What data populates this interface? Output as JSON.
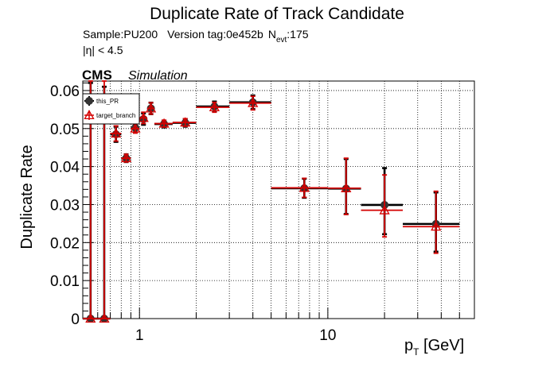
{
  "chart_data": {
    "type": "scatter",
    "title": "Duplicate Rate of Track Candidate",
    "info": {
      "sample": "Sample:PU200",
      "version": "Version tag:0e452b",
      "nevt_prefix": "N",
      "nevt_sub": "evt",
      "nevt_value": ":175",
      "eta_cut": "|η| < 4.5"
    },
    "cms_label": "CMS",
    "simulation_label": "Simulation",
    "ylabel": "Duplicate Rate",
    "xlabel": {
      "main": "p",
      "sub": "T",
      "unit": " [GeV]"
    },
    "xscale": "log",
    "xlim": [
      0.5,
      60
    ],
    "ylim": [
      0,
      0.0625
    ],
    "grid": true,
    "legend_position": "top-left",
    "y_ticks": [
      "0",
      "0.01",
      "0.02",
      "0.03",
      "0.04",
      "0.05",
      "0.06"
    ],
    "x_ticks": [
      "1",
      "10"
    ],
    "series": [
      {
        "name": "this_PR",
        "color": "#000000",
        "marker": "filled-circle",
        "points": [
          {
            "x": 0.55,
            "xlo": 0.5,
            "xhi": 0.6,
            "y": 0.0,
            "ylo": 0.0,
            "yhi": 0.062
          },
          {
            "x": 0.65,
            "xlo": 0.6,
            "xhi": 0.7,
            "y": 0.0,
            "ylo": 0.0,
            "yhi": 0.061
          },
          {
            "x": 0.75,
            "xlo": 0.7,
            "xhi": 0.8,
            "y": 0.0485,
            "ylo": 0.0465,
            "yhi": 0.0505
          },
          {
            "x": 0.85,
            "xlo": 0.8,
            "xhi": 0.9,
            "y": 0.0422,
            "ylo": 0.0412,
            "yhi": 0.0432
          },
          {
            "x": 0.95,
            "xlo": 0.9,
            "xhi": 1.0,
            "y": 0.0502,
            "ylo": 0.049,
            "yhi": 0.0514
          },
          {
            "x": 1.05,
            "xlo": 1.0,
            "xhi": 1.1,
            "y": 0.0525,
            "ylo": 0.051,
            "yhi": 0.054
          },
          {
            "x": 1.15,
            "xlo": 1.1,
            "xhi": 1.2,
            "y": 0.0553,
            "ylo": 0.0538,
            "yhi": 0.0568
          },
          {
            "x": 1.35,
            "xlo": 1.2,
            "xhi": 1.5,
            "y": 0.0512,
            "ylo": 0.0503,
            "yhi": 0.0521
          },
          {
            "x": 1.75,
            "xlo": 1.5,
            "xhi": 2.0,
            "y": 0.0515,
            "ylo": 0.0505,
            "yhi": 0.0525
          },
          {
            "x": 2.5,
            "xlo": 2.0,
            "xhi": 3.0,
            "y": 0.0558,
            "ylo": 0.0545,
            "yhi": 0.0571
          },
          {
            "x": 4.0,
            "xlo": 3.0,
            "xhi": 5.0,
            "y": 0.0569,
            "ylo": 0.0551,
            "yhi": 0.0587
          },
          {
            "x": 7.5,
            "xlo": 5.0,
            "xhi": 10.0,
            "y": 0.0343,
            "ylo": 0.0318,
            "yhi": 0.0368
          },
          {
            "x": 12.5,
            "xlo": 10.0,
            "xhi": 15.0,
            "y": 0.0342,
            "ylo": 0.0275,
            "yhi": 0.042
          },
          {
            "x": 20.0,
            "xlo": 15.0,
            "xhi": 25.0,
            "y": 0.0299,
            "ylo": 0.0222,
            "yhi": 0.0396
          },
          {
            "x": 37.5,
            "xlo": 25.0,
            "xhi": 50.0,
            "y": 0.0249,
            "ylo": 0.0176,
            "yhi": 0.0332
          }
        ]
      },
      {
        "name": "target_branch",
        "color": "#d40000",
        "marker": "open-triangle",
        "points": [
          {
            "x": 0.55,
            "xlo": 0.5,
            "xhi": 0.6,
            "y": 0.0,
            "ylo": 0.0,
            "yhi": 0.0625
          },
          {
            "x": 0.65,
            "xlo": 0.6,
            "xhi": 0.7,
            "y": 0.0,
            "ylo": 0.0,
            "yhi": 0.0625
          },
          {
            "x": 0.75,
            "xlo": 0.7,
            "xhi": 0.8,
            "y": 0.0487,
            "ylo": 0.0467,
            "yhi": 0.0507
          },
          {
            "x": 0.85,
            "xlo": 0.8,
            "xhi": 0.9,
            "y": 0.0422,
            "ylo": 0.0412,
            "yhi": 0.0432
          },
          {
            "x": 0.95,
            "xlo": 0.9,
            "xhi": 1.0,
            "y": 0.05,
            "ylo": 0.0488,
            "yhi": 0.0512
          },
          {
            "x": 1.05,
            "xlo": 1.0,
            "xhi": 1.1,
            "y": 0.0528,
            "ylo": 0.0513,
            "yhi": 0.0543
          },
          {
            "x": 1.15,
            "xlo": 1.1,
            "xhi": 1.2,
            "y": 0.0553,
            "ylo": 0.0538,
            "yhi": 0.0568
          },
          {
            "x": 1.35,
            "xlo": 1.2,
            "xhi": 1.5,
            "y": 0.0513,
            "ylo": 0.0504,
            "yhi": 0.0522
          },
          {
            "x": 1.75,
            "xlo": 1.5,
            "xhi": 2.0,
            "y": 0.0516,
            "ylo": 0.0506,
            "yhi": 0.0526
          },
          {
            "x": 2.5,
            "xlo": 2.0,
            "xhi": 3.0,
            "y": 0.0556,
            "ylo": 0.0543,
            "yhi": 0.0569
          },
          {
            "x": 4.0,
            "xlo": 3.0,
            "xhi": 5.0,
            "y": 0.0567,
            "ylo": 0.0549,
            "yhi": 0.0585
          },
          {
            "x": 7.5,
            "xlo": 5.0,
            "xhi": 10.0,
            "y": 0.0344,
            "ylo": 0.0319,
            "yhi": 0.0369
          },
          {
            "x": 12.5,
            "xlo": 10.0,
            "xhi": 15.0,
            "y": 0.0343,
            "ylo": 0.0274,
            "yhi": 0.0422
          },
          {
            "x": 20.0,
            "xlo": 15.0,
            "xhi": 25.0,
            "y": 0.0285,
            "ylo": 0.0215,
            "yhi": 0.0378
          },
          {
            "x": 37.5,
            "xlo": 25.0,
            "xhi": 50.0,
            "y": 0.0242,
            "ylo": 0.0172,
            "yhi": 0.0335
          }
        ]
      }
    ]
  }
}
